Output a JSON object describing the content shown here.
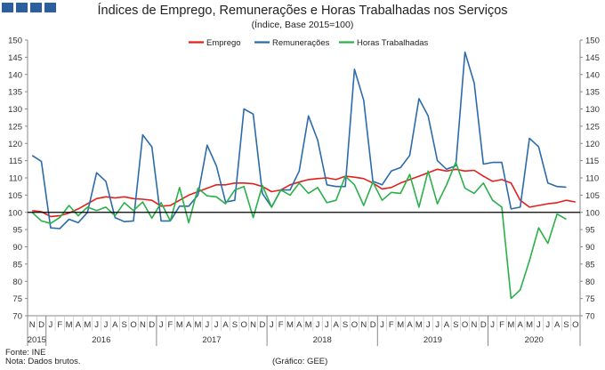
{
  "header": {
    "title": "Índices de Emprego, Remunerações e Horas Trabalhadas nos Serviços",
    "subtitle": "(Índice, Base 2015=100)"
  },
  "footer": {
    "source": "Fonte: INE",
    "note": "Nota: Dados brutos.",
    "credit": "(Gráfico: GEE)"
  },
  "colors": {
    "logo": "#2b5f9e",
    "emprego": "#e3201b",
    "remuneracoes": "#2c6bab",
    "horas": "#2ab04a",
    "baseline": "#000000",
    "axis": "#888888"
  },
  "chart_data": {
    "type": "line",
    "ylim": [
      70,
      150
    ],
    "y_ticks": [
      70,
      75,
      80,
      85,
      90,
      95,
      100,
      105,
      110,
      115,
      120,
      125,
      130,
      135,
      140,
      145,
      150
    ],
    "reference_line": 100,
    "legend_position": "top-center",
    "month_labels": [
      "N",
      "D",
      "J",
      "F",
      "M",
      "A",
      "M",
      "J",
      "J",
      "A",
      "S",
      "O",
      "N",
      "D",
      "J",
      "F",
      "M",
      "A",
      "M",
      "J",
      "J",
      "A",
      "S",
      "O",
      "N",
      "D",
      "J",
      "F",
      "M",
      "A",
      "M",
      "J",
      "J",
      "A",
      "S",
      "O",
      "N",
      "D",
      "J",
      "F",
      "M",
      "A",
      "M",
      "J",
      "J",
      "A",
      "S",
      "O",
      "N",
      "D",
      "J",
      "F",
      "M",
      "A",
      "M",
      "J",
      "J",
      "A",
      "S",
      "O"
    ],
    "year_labels": [
      {
        "label": "2015",
        "start": 0,
        "end": 1
      },
      {
        "label": "2016",
        "start": 2,
        "end": 13
      },
      {
        "label": "2017",
        "start": 14,
        "end": 25
      },
      {
        "label": "2018",
        "start": 26,
        "end": 37
      },
      {
        "label": "2019",
        "start": 38,
        "end": 49
      },
      {
        "label": "2020",
        "start": 50,
        "end": 59
      }
    ],
    "series": [
      {
        "name": "Emprego",
        "color": "#e3201b",
        "values": [
          100.5,
          100.2,
          98.8,
          99,
          99.8,
          101,
          102.5,
          104,
          104.5,
          104.2,
          104.5,
          104,
          103.8,
          103.5,
          101.8,
          102,
          103.5,
          105,
          106,
          107,
          108,
          108,
          108.5,
          108.5,
          108.3,
          107.5,
          106,
          106.5,
          108,
          108.8,
          109.5,
          109.8,
          110,
          109.5,
          110.5,
          110.2,
          109.8,
          108.5,
          106.8,
          107.2,
          108.5,
          109.5,
          110.5,
          111.5,
          112.5,
          112,
          112.5,
          112,
          112.2,
          110.5,
          109,
          109.5,
          108.5,
          103.5,
          101.5,
          102,
          102.5,
          102.8,
          103.5,
          103
        ]
      },
      {
        "name": "Remunerações",
        "color": "#2c6bab",
        "values": [
          116.5,
          114.8,
          95.5,
          95.3,
          98,
          97,
          100,
          111.5,
          109,
          98.5,
          97.3,
          97.5,
          122.5,
          119,
          97.5,
          97.5,
          101.8,
          101.8,
          105,
          119.5,
          113.5,
          103,
          103.5,
          130,
          128.5,
          105.5,
          101.5,
          106.5,
          106.5,
          112,
          128,
          121,
          108,
          107.5,
          107.5,
          141.5,
          132.5,
          109,
          108,
          112,
          113,
          116.5,
          133,
          128,
          115,
          112.5,
          113.5,
          146.5,
          137.5,
          114,
          114.5,
          114.5,
          101,
          101.5,
          121.5,
          119,
          108.5,
          107.5,
          107.3,
          null
        ]
      },
      {
        "name": "Horas Trabalhadas",
        "color": "#2ab04a",
        "values": [
          100,
          97.5,
          96.8,
          98.5,
          102,
          99,
          101.5,
          100.5,
          101.5,
          99,
          102.8,
          100.5,
          103,
          98.3,
          102.8,
          97.5,
          107.2,
          97,
          107,
          104.8,
          104.5,
          102.5,
          106.5,
          107.5,
          98.5,
          107.8,
          101.5,
          106.5,
          105,
          108.5,
          105.5,
          107.2,
          102.8,
          103.5,
          110.5,
          108,
          102,
          108.8,
          103.5,
          105.8,
          105.5,
          111,
          101.5,
          112,
          102.5,
          108,
          114.5,
          107,
          105.5,
          108.5,
          103.5,
          101.5,
          75,
          77.5,
          86,
          95.5,
          91,
          99.5,
          98,
          null
        ]
      }
    ]
  }
}
